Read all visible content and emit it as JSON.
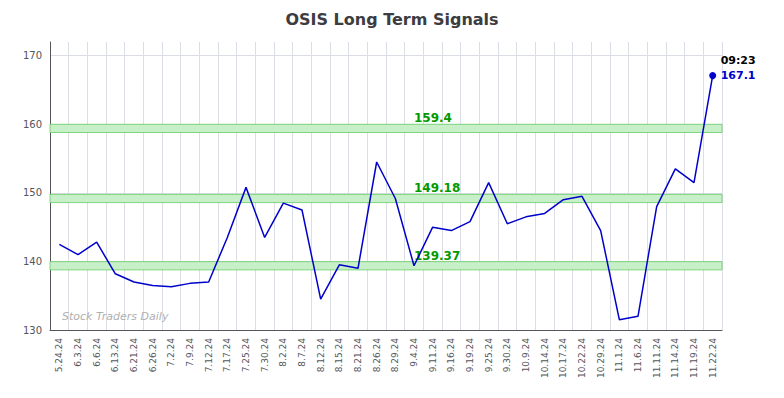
{
  "chart_data": {
    "type": "line",
    "title": "OSIS Long Term Signals",
    "categories": [
      "5.24.24",
      "6.3.24",
      "6.6.24",
      "6.13.24",
      "6.21.24",
      "6.26.24",
      "7.2.24",
      "7.9.24",
      "7.12.24",
      "7.17.24",
      "7.25.24",
      "7.30.24",
      "8.2.24",
      "8.7.24",
      "8.12.24",
      "8.15.24",
      "8.21.24",
      "8.26.24",
      "8.29.24",
      "9.4.24",
      "9.11.24",
      "9.16.24",
      "9.19.24",
      "9.25.24",
      "9.30.24",
      "10.9.24",
      "10.14.24",
      "10.17.24",
      "10.22.24",
      "10.29.24",
      "11.1.24",
      "11.6.24",
      "11.11.24",
      "11.14.24",
      "11.19.24",
      "11.22.24"
    ],
    "values": [
      142.5,
      141.0,
      142.8,
      138.2,
      137.0,
      136.5,
      136.3,
      136.8,
      137.0,
      143.5,
      150.8,
      143.5,
      148.5,
      147.5,
      134.5,
      139.5,
      139.0,
      154.5,
      149.18,
      139.37,
      145.0,
      144.5,
      145.8,
      151.5,
      145.5,
      146.5,
      147.0,
      149.0,
      149.5,
      144.5,
      131.5,
      132.0,
      148.0,
      153.5,
      151.5,
      167.1
    ],
    "color": "#0000cc",
    "ylim": [
      130,
      172
    ],
    "yticks": [
      130,
      140,
      150,
      160,
      170
    ],
    "grid": true,
    "bands": [
      {
        "center": 159.4,
        "half_width": 0.6,
        "fill": "#c8f0c8",
        "edge": "#66cc66"
      },
      {
        "center": 149.18,
        "half_width": 0.6,
        "fill": "#c8f0c8",
        "edge": "#66cc66"
      },
      {
        "center": 139.37,
        "half_width": 0.6,
        "fill": "#c8f0c8",
        "edge": "#66cc66"
      }
    ],
    "annotations": [
      {
        "text": "159.4",
        "x": "9.4.24",
        "y": 159.4,
        "color": "#009900"
      },
      {
        "text": "149.18",
        "x": "9.4.24",
        "y": 149.18,
        "color": "#009900"
      },
      {
        "text": "139.37",
        "x": "9.4.24",
        "y": 139.37,
        "color": "#009900"
      }
    ],
    "last_point_labels": {
      "time": "09:23",
      "price": "167.1"
    },
    "watermark": "Stock Traders Daily"
  }
}
